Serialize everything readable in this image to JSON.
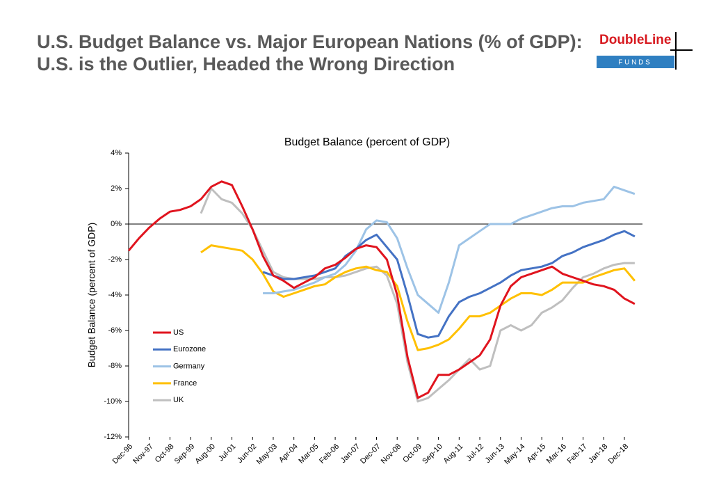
{
  "header": {
    "title_lines": [
      "U.S. Budget Balance vs. Major European Nations (% of GDP):",
      "U.S. is the Outlier, Headed the Wrong Direction"
    ],
    "logo": {
      "name": "DoubleLine",
      "tagline": "F U N D S"
    }
  },
  "chart_data": {
    "type": "line",
    "title": "Budget Balance (percent of GDP)",
    "y_label": "Budget Balance (percent of GDP)",
    "legend": "lower left",
    "grid": false,
    "categories": [
      "Dec-96",
      null,
      "Nov-97",
      null,
      "Oct-98",
      null,
      "Sep-99",
      null,
      "Aug-00",
      null,
      "Jul-01",
      null,
      "Jun-02",
      null,
      "May-03",
      null,
      "Apr-04",
      null,
      "Mar-05",
      null,
      "Feb-06",
      null,
      "Jan-07",
      null,
      "Dec-07",
      null,
      "Nov-08",
      null,
      "Oct-09",
      null,
      "Sep-10",
      null,
      "Aug-11",
      null,
      "Jul-12",
      null,
      "Jun-13",
      null,
      "May-14",
      null,
      "Apr-15",
      null,
      "Mar-16",
      null,
      "Feb-17",
      null,
      "Jan-18",
      null,
      "Dec-18",
      null
    ],
    "ylim": [
      -12,
      4
    ],
    "yticks": [
      {
        "value": 4,
        "label": "4%"
      },
      {
        "value": 2,
        "label": "2%"
      },
      {
        "value": 0,
        "label": "0%"
      },
      {
        "value": -2,
        "label": "-2%"
      },
      {
        "value": -4,
        "label": "-4%"
      },
      {
        "value": -6,
        "label": "-6%"
      },
      {
        "value": -8,
        "label": "-8%"
      },
      {
        "value": -10,
        "label": "-10%"
      },
      {
        "value": -12,
        "label": "-12%"
      }
    ],
    "series": [
      {
        "name": "US",
        "color": "#e0141e",
        "values": [
          -1.5,
          -0.8,
          -0.2,
          0.3,
          0.7,
          0.8,
          1.0,
          1.4,
          2.1,
          2.4,
          2.2,
          1.0,
          -0.3,
          -1.8,
          -2.9,
          -3.2,
          -3.6,
          -3.3,
          -3.0,
          -2.5,
          -2.3,
          -1.9,
          -1.4,
          -1.2,
          -1.3,
          -2.0,
          -4.0,
          -7.5,
          -9.8,
          -9.5,
          -8.5,
          -8.5,
          -8.2,
          -7.8,
          -7.4,
          -6.5,
          -4.6,
          -3.5,
          -3.0,
          -2.8,
          -2.6,
          -2.4,
          -2.8,
          -3.0,
          -3.2,
          -3.4,
          -3.5,
          -3.7,
          -4.2,
          -4.5
        ]
      },
      {
        "name": "Eurozone",
        "color": "#4472c4",
        "values": [
          null,
          null,
          null,
          null,
          null,
          null,
          null,
          null,
          null,
          null,
          null,
          null,
          null,
          -2.7,
          -2.9,
          -3.1,
          -3.1,
          -3.0,
          -2.9,
          -2.7,
          -2.5,
          -1.8,
          -1.4,
          -0.9,
          -0.6,
          -1.3,
          -2.0,
          -4.0,
          -6.2,
          -6.4,
          -6.3,
          -5.2,
          -4.4,
          -4.1,
          -3.9,
          -3.6,
          -3.3,
          -2.9,
          -2.6,
          -2.5,
          -2.4,
          -2.2,
          -1.8,
          -1.6,
          -1.3,
          -1.1,
          -0.9,
          -0.6,
          -0.4,
          -0.7
        ]
      },
      {
        "name": "Germany",
        "color": "#9dc3e6",
        "values": [
          null,
          null,
          null,
          null,
          null,
          null,
          null,
          null,
          null,
          null,
          null,
          null,
          null,
          -3.9,
          -3.9,
          -3.8,
          -3.7,
          -3.5,
          -3.3,
          -3.0,
          -2.8,
          -2.3,
          -1.5,
          -0.3,
          0.2,
          0.1,
          -0.8,
          -2.5,
          -4.0,
          -4.5,
          -5.0,
          -3.3,
          -1.2,
          -0.8,
          -0.4,
          0.0,
          0.0,
          0.0,
          0.3,
          0.5,
          0.7,
          0.9,
          1.0,
          1.0,
          1.2,
          1.3,
          1.4,
          2.1,
          1.9,
          1.7
        ]
      },
      {
        "name": "France",
        "color": "#ffc000",
        "values": [
          null,
          null,
          null,
          null,
          null,
          null,
          null,
          -1.6,
          -1.2,
          -1.3,
          -1.4,
          -1.5,
          -2.0,
          -2.8,
          -3.8,
          -4.1,
          -3.9,
          -3.7,
          -3.5,
          -3.4,
          -3.0,
          -2.7,
          -2.5,
          -2.4,
          -2.6,
          -2.7,
          -3.5,
          -5.5,
          -7.1,
          -7.0,
          -6.8,
          -6.5,
          -5.9,
          -5.2,
          -5.2,
          -5.0,
          -4.6,
          -4.2,
          -3.9,
          -3.9,
          -4.0,
          -3.7,
          -3.3,
          -3.3,
          -3.3,
          -3.0,
          -2.8,
          -2.6,
          -2.5,
          -3.2
        ]
      },
      {
        "name": "UK",
        "color": "#bfbfbf",
        "values": [
          null,
          null,
          null,
          null,
          null,
          null,
          null,
          0.6,
          2.0,
          1.4,
          1.2,
          0.6,
          -0.3,
          -1.5,
          -2.7,
          -3.0,
          -3.1,
          -3.1,
          -3.1,
          -3.0,
          -3.0,
          -2.9,
          -2.7,
          -2.5,
          -2.4,
          -2.9,
          -4.5,
          -7.8,
          -10.0,
          -9.8,
          -9.3,
          -8.8,
          -8.2,
          -7.6,
          -8.2,
          -8.0,
          -6.0,
          -5.7,
          -6.0,
          -5.7,
          -5.0,
          -4.7,
          -4.3,
          -3.6,
          -3.0,
          -2.8,
          -2.5,
          -2.3,
          -2.2,
          -2.2
        ]
      }
    ]
  }
}
